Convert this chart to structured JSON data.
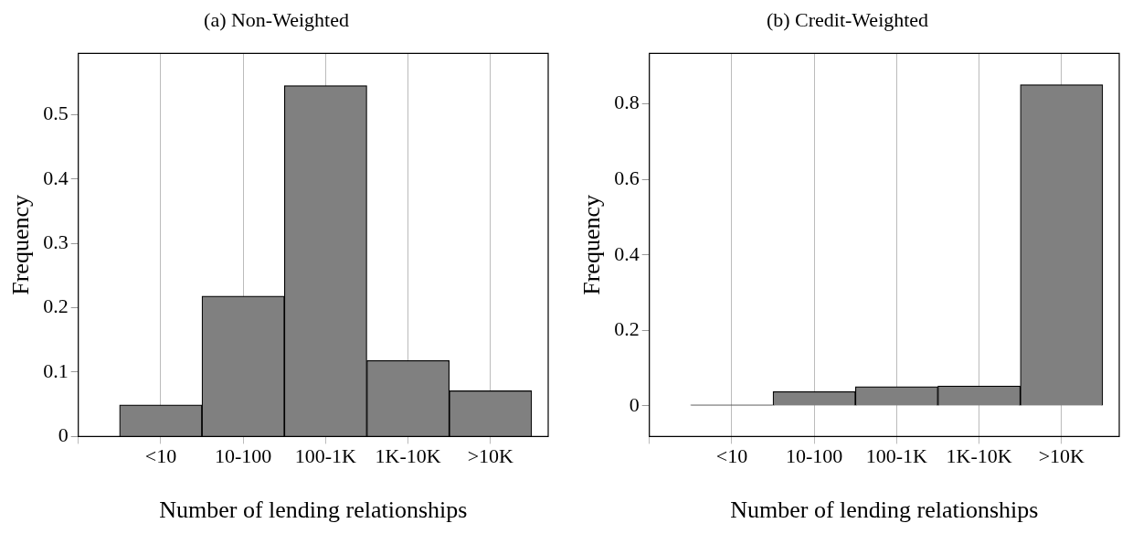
{
  "chart_data": [
    {
      "type": "bar",
      "title": "(a) Non-Weighted",
      "xlabel": "Number of lending relationships",
      "ylabel": "Frequency",
      "categories": [
        "<10",
        "10-100",
        "100-1K",
        "1K-10K",
        ">10K"
      ],
      "values": [
        0.049,
        0.218,
        0.545,
        0.118,
        0.071
      ],
      "color": "#808080",
      "ylim": [
        0,
        0.595
      ],
      "yticks": [
        0,
        0.1,
        0.2,
        0.3,
        0.4,
        0.5
      ],
      "grid": "x"
    },
    {
      "type": "bar",
      "title": "(b) Credit-Weighted",
      "xlabel": "Number of lending relationships",
      "ylabel": "Frequency",
      "categories": [
        "<10",
        "10-100",
        "100-1K",
        "1K-10K",
        ">10K"
      ],
      "values": [
        0.003,
        0.038,
        0.051,
        0.053,
        0.851
      ],
      "color": "#808080",
      "ylim": [
        -0.081,
        0.934
      ],
      "yticks": [
        0,
        0.2,
        0.4,
        0.6,
        0.8
      ],
      "grid": "x"
    }
  ]
}
